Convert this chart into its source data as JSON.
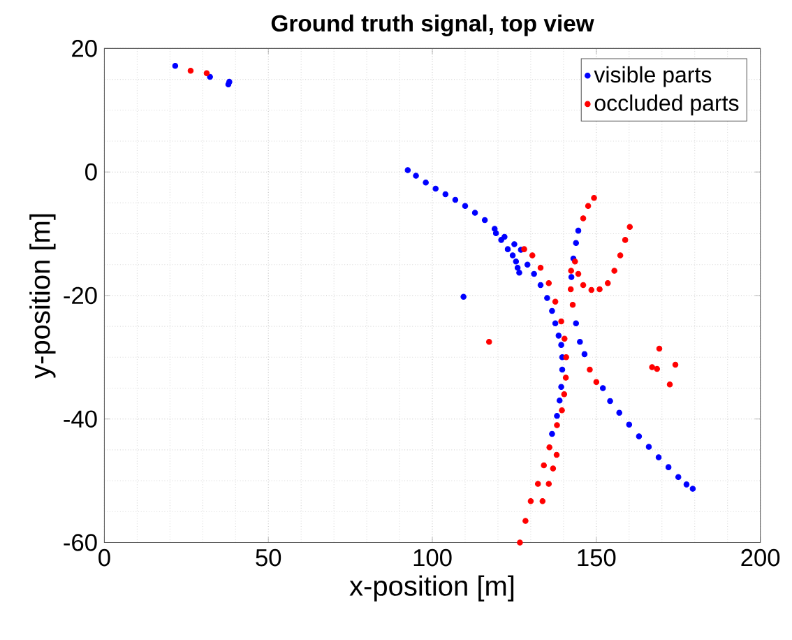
{
  "chart_data": {
    "type": "scatter",
    "title": "Ground truth signal, top view",
    "xlabel": "x-position [m]",
    "ylabel": "y-position [m]",
    "xlim": [
      0,
      200
    ],
    "ylim": [
      -60,
      20
    ],
    "xticks": [
      0,
      50,
      100,
      150,
      200
    ],
    "yticks": [
      -60,
      -40,
      -20,
      0,
      20
    ],
    "grid": true,
    "legend": "top right",
    "marker": "circle",
    "series": [
      {
        "name": "visible parts",
        "color": "#0000ff",
        "x": [
          21.6,
          32.2,
          38.1,
          37.8,
          92.5,
          95,
          98,
          101,
          104,
          107,
          110,
          113,
          116,
          119,
          122,
          125,
          127,
          119.4,
          121,
          123,
          124.5,
          125.5,
          126.5,
          126,
          129,
          131,
          133,
          135,
          136.5,
          137.5,
          138.5,
          139.3,
          139.6,
          139.6,
          139.3,
          138.8,
          138,
          136.5,
          109.5,
          144.5,
          143.8,
          143,
          142.4,
          143.8,
          145,
          146.4,
          152,
          154.2,
          157,
          160,
          163,
          166,
          169,
          172,
          175,
          177.5,
          179.4
        ],
        "values": [
          17.2,
          15.4,
          14.6,
          14.2,
          0.3,
          -0.6,
          -1.7,
          -2.7,
          -3.6,
          -4.5,
          -5.5,
          -6.6,
          -7.8,
          -9.2,
          -10.5,
          -11.7,
          -12.6,
          -9.9,
          -11,
          -12.5,
          -13.5,
          -14.5,
          -16.3,
          -15.5,
          -15,
          -16.5,
          -18.3,
          -20.4,
          -22.5,
          -24.5,
          -26.5,
          -28,
          -30,
          -32,
          -34.8,
          -37,
          -39.5,
          -42.4,
          -20.2,
          -9.5,
          -11.5,
          -14,
          -17,
          -24.5,
          -27.5,
          -29.5,
          -35,
          -37.1,
          -39,
          -40.9,
          -42.8,
          -44.5,
          -46.2,
          -47.8,
          -49.4,
          -50.6,
          -51.3
        ]
      },
      {
        "name": "occluded parts",
        "color": "#ff0000",
        "x": [
          26.3,
          31.2,
          128,
          130.5,
          133,
          135.5,
          137.5,
          139.3,
          140.3,
          140.8,
          140.7,
          140.2,
          139.5,
          138,
          135.7,
          134,
          132.2,
          130,
          128.4,
          126.7,
          137.9,
          136.8,
          135.5,
          133.6,
          149.3,
          147.5,
          146,
          142.3,
          142.2,
          142.8,
          148,
          150,
          143.5,
          144.5,
          146,
          148.5,
          151,
          153.5,
          155.5,
          157.3,
          158.8,
          160.2,
          117.3,
          169.2,
          167,
          168.5,
          174.1,
          172.4
        ],
        "values": [
          16.4,
          16.0,
          -12.5,
          -13.5,
          -15.5,
          -18,
          -21,
          -24.2,
          -27,
          -30,
          -33.3,
          -36,
          -38.6,
          -41,
          -44.6,
          -47.5,
          -50.5,
          -53.3,
          -56.5,
          -60,
          -45.8,
          -48,
          -50.5,
          -53.3,
          -4.2,
          -5.5,
          -7.5,
          -16,
          -19,
          -21.5,
          -32,
          -34,
          -14.5,
          -16.5,
          -18.3,
          -19.1,
          -19,
          -18,
          -16,
          -13.5,
          -11,
          -8.9,
          -27.5,
          -28.6,
          -31.6,
          -31.9,
          -31.2,
          -34.4
        ]
      }
    ]
  }
}
